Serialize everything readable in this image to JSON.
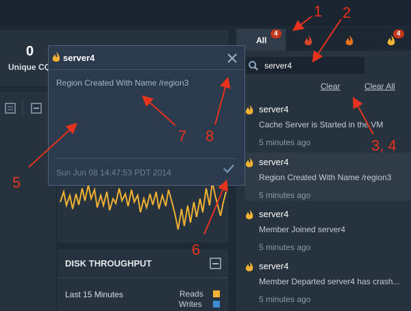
{
  "summary": {
    "value": 0,
    "label": "Unique CQs"
  },
  "chart_panel": {
    "title": "DISK THROUGHPUT",
    "range": "Last 15 Minutes",
    "legend": [
      "Reads",
      "Writes"
    ]
  },
  "popup": {
    "title": "server4",
    "message": "Region Created With Name /region3",
    "timestamp": "Sun Jun 08 14:47:53 PDT 2014"
  },
  "tabs": {
    "all": "All",
    "all_badge": 4,
    "warning_badge": 4
  },
  "search": "server4",
  "actions": [
    "Clear",
    "Clear All"
  ],
  "notifications": [
    {
      "member": "server4",
      "message": "Cache Server is Started in the VM",
      "time": "5 minutes ago"
    },
    {
      "member": "server4",
      "message": "Region Created With Name /region3",
      "time": "5 minutes ago"
    },
    {
      "member": "server4",
      "message": "Member Joined server4",
      "time": "5 minutes ago"
    },
    {
      "member": "server4",
      "message": "Member Departed server4 has crash...",
      "time": "5 minutes ago"
    }
  ],
  "annotations": [
    "1",
    "2",
    "3, 4",
    "5",
    "6",
    "7",
    "8"
  ]
}
